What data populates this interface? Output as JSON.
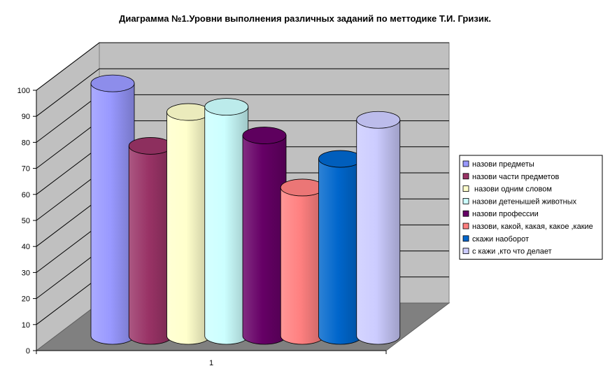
{
  "chart_data": {
    "type": "bar",
    "title": "Диаграмма №1.Уровни выполнения различных заданий по меттодике Т.И. Гризик.",
    "categories": [
      "1"
    ],
    "ylim": [
      0,
      100
    ],
    "yticks": [
      0,
      10,
      20,
      30,
      40,
      50,
      60,
      70,
      80,
      90,
      100
    ],
    "grid": true,
    "legend": "right",
    "style": "3d-cylinder",
    "series": [
      {
        "name": "назови предметы",
        "values": [
          97
        ],
        "color": "#9999ff"
      },
      {
        "name": "назови части предметов",
        "values": [
          73
        ],
        "color": "#993366"
      },
      {
        "name": " назови одним словом",
        "values": [
          86
        ],
        "color": "#ffffcc"
      },
      {
        "name": "назови детенышей животных",
        "values": [
          88
        ],
        "color": "#ccffff"
      },
      {
        "name": "назови профессии",
        "values": [
          77
        ],
        "color": "#660066"
      },
      {
        "name": "назови, какой, какая, какое ,какие",
        "values": [
          57
        ],
        "color": "#ff8080"
      },
      {
        "name": "скажи наоборот",
        "values": [
          68
        ],
        "color": "#0066cc"
      },
      {
        "name": "с кажи ,кто что делает",
        "values": [
          83
        ],
        "color": "#ccccff"
      }
    ]
  }
}
